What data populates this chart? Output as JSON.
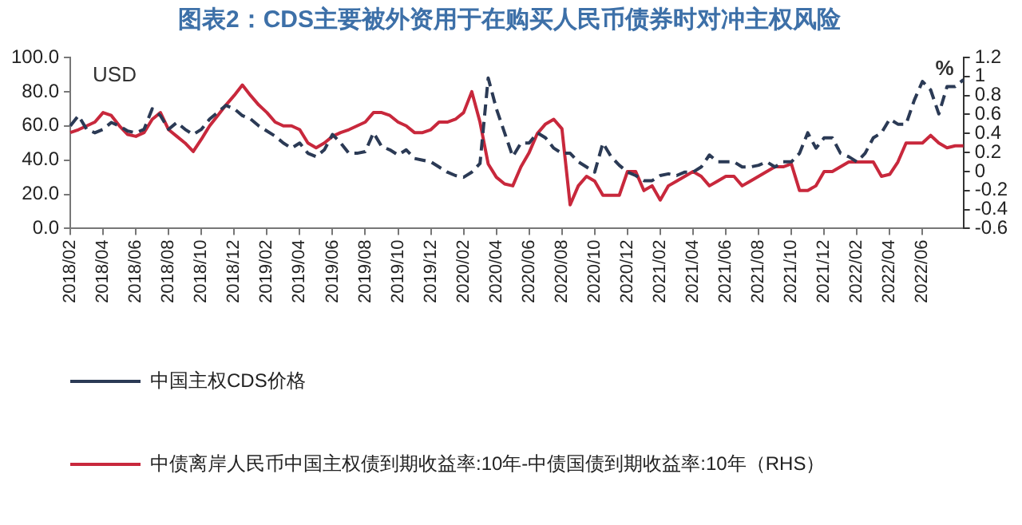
{
  "chart_data": {
    "type": "line",
    "title": "图表2：CDS主要被外资用于在购买人民币债券时对冲主权风险",
    "ylabel": "USD",
    "y2label": "%",
    "categories": [
      "2018/02",
      null,
      null,
      null,
      "2018/04",
      null,
      null,
      null,
      "2018/06",
      null,
      null,
      null,
      "2018/08",
      null,
      null,
      null,
      "2018/10",
      null,
      null,
      null,
      "2018/12",
      null,
      null,
      null,
      "2019/02",
      null,
      null,
      null,
      "2019/04",
      null,
      null,
      null,
      "2019/06",
      null,
      null,
      null,
      "2019/08",
      null,
      null,
      null,
      "2019/10",
      null,
      null,
      null,
      "2019/12",
      null,
      null,
      null,
      "2020/02",
      null,
      null,
      null,
      "2020/04",
      null,
      null,
      null,
      "2020/06",
      null,
      null,
      null,
      "2020/08",
      null,
      null,
      null,
      "2020/10",
      null,
      null,
      null,
      "2020/12",
      null,
      null,
      null,
      "2021/02",
      null,
      null,
      null,
      "2021/04",
      null,
      null,
      null,
      "2021/06",
      null,
      null,
      null,
      "2021/08",
      null,
      null,
      null,
      "2021/10",
      null,
      null,
      null,
      "2021/12",
      null,
      null,
      null,
      "2022/02",
      null,
      null,
      null,
      "2022/04",
      null,
      null,
      null,
      "2022/06",
      null,
      null,
      null,
      null,
      null
    ],
    "series": [
      {
        "name": "中国主权CDS价格",
        "color": "#2b3a55",
        "line_style": "dashed",
        "values": [
          60,
          66,
          58,
          56,
          58,
          62,
          60,
          57,
          56,
          58,
          70,
          66,
          58,
          62,
          58,
          55,
          58,
          64,
          68,
          72,
          70,
          66,
          64,
          60,
          57,
          54,
          50,
          47,
          50,
          44,
          42,
          46,
          55,
          50,
          44,
          44,
          45,
          56,
          48,
          46,
          43,
          46,
          41,
          40,
          39,
          36,
          33,
          31,
          30,
          33,
          38,
          88,
          70,
          56,
          42,
          50,
          50,
          56,
          53,
          47,
          44,
          44,
          39,
          36,
          33,
          50,
          42,
          37,
          33,
          31,
          28,
          28,
          31,
          32,
          31,
          33,
          33,
          36,
          43,
          39,
          39,
          39,
          36,
          36,
          37,
          39,
          36,
          39,
          39,
          44,
          56,
          47,
          53,
          53,
          44,
          42,
          39,
          44,
          53,
          56,
          64,
          61,
          61,
          75,
          86,
          81,
          67,
          83,
          83,
          87
        ]
      },
      {
        "name": "中债离岸人民币中国主权债到期收益率:10年-中债国债到期收益率:10年（RHS）",
        "color": "#c8283c",
        "axis": "y2",
        "line_style": "solid",
        "values": [
          0.41,
          0.44,
          0.48,
          0.52,
          0.62,
          0.59,
          0.48,
          0.39,
          0.37,
          0.41,
          0.55,
          0.62,
          0.44,
          0.37,
          0.3,
          0.21,
          0.34,
          0.48,
          0.59,
          0.7,
          0.8,
          0.91,
          0.8,
          0.7,
          0.62,
          0.52,
          0.48,
          0.48,
          0.44,
          0.3,
          0.25,
          0.3,
          0.37,
          0.41,
          0.44,
          0.48,
          0.52,
          0.62,
          0.62,
          0.59,
          0.52,
          0.48,
          0.41,
          0.41,
          0.44,
          0.52,
          0.52,
          0.55,
          0.62,
          0.84,
          0.52,
          0.08,
          -0.06,
          -0.13,
          -0.15,
          0.05,
          0.2,
          0.4,
          0.5,
          0.55,
          0.45,
          -0.35,
          -0.15,
          -0.05,
          -0.1,
          -0.25,
          -0.25,
          -0.25,
          0,
          0,
          -0.2,
          -0.15,
          -0.3,
          -0.15,
          -0.1,
          -0.05,
          0,
          -0.05,
          -0.15,
          -0.1,
          -0.05,
          -0.05,
          -0.15,
          -0.1,
          -0.05,
          0,
          0.05,
          0.05,
          0.08,
          -0.2,
          -0.2,
          -0.15,
          0,
          0,
          0.05,
          0.1,
          0.1,
          0.1,
          0.1,
          -0.05,
          -0.03,
          0.1,
          0.3,
          0.3,
          0.3,
          0.38,
          0.3,
          0.25,
          0.27,
          0.27
        ]
      }
    ],
    "ylim": [
      0,
      100
    ],
    "yticks": [
      {
        "value": 0,
        "label": "0.0"
      },
      {
        "value": 20,
        "label": "20.0"
      },
      {
        "value": 40,
        "label": "40.0"
      },
      {
        "value": 60,
        "label": "60.0"
      },
      {
        "value": 80,
        "label": "80.0"
      },
      {
        "value": 100,
        "label": "100.0"
      }
    ],
    "y2lim": [
      -0.6,
      1.2
    ],
    "y2ticks": [
      -0.6,
      -0.4,
      -0.2,
      0,
      0.2,
      0.4,
      0.6,
      0.8,
      1,
      1.2
    ],
    "grid": false,
    "legend": "bottom left",
    "marker": "none"
  }
}
